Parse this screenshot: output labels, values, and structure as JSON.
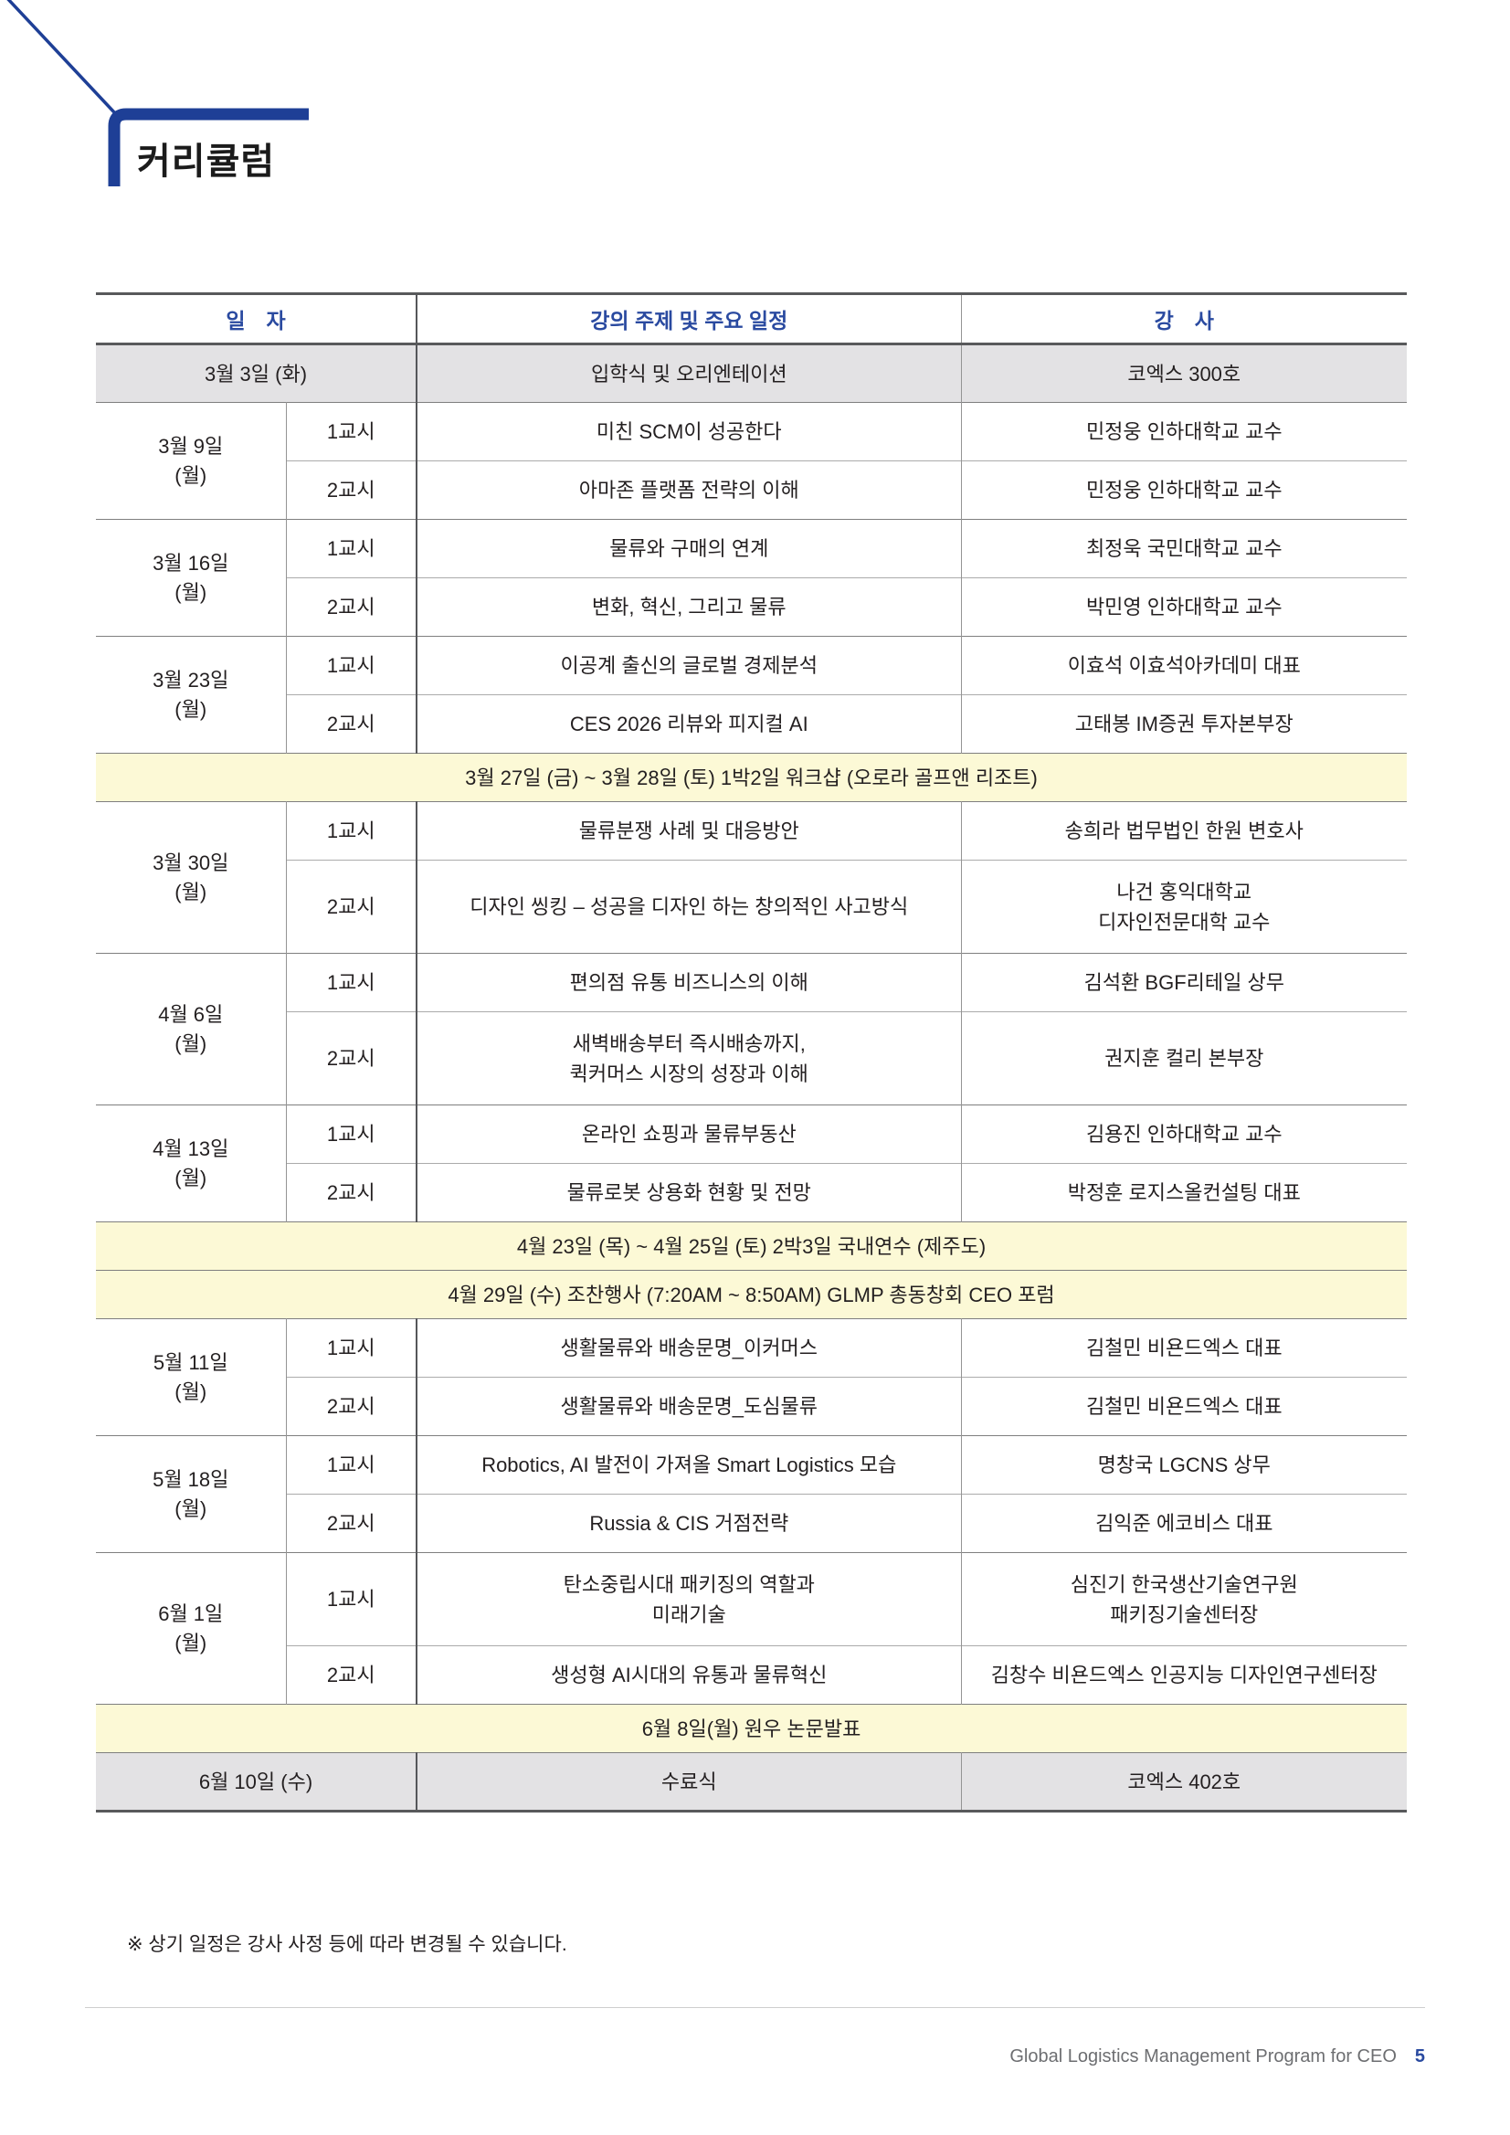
{
  "page": {
    "title": "커리큘럼",
    "note": "※ 상기 일정은 강사 사정 등에 따라 변경될 수 있습니다.",
    "footer": {
      "program": "Global Logistics Management Program for CEO",
      "page_number": "5"
    }
  },
  "colors": {
    "accent_blue": "#2a4aa0",
    "bracket_navy": "#1e3f96",
    "row_gray": "#e3e2e4",
    "band_yellow": "#fcf9d6",
    "border_dark": "#58595b"
  },
  "table": {
    "header": {
      "date": "일　자",
      "topic": "강의 주제 및 주요 일정",
      "lecturer": "강　사"
    },
    "rows": [
      {
        "type": "single",
        "date": "3월 3일  (화)",
        "topic": "입학식 및 오리엔테이션",
        "lecturer": "코엑스 300호"
      },
      {
        "type": "group",
        "date": "3월 9일\n(월)",
        "sessions": [
          {
            "period": "1교시",
            "topic": "미친 SCM이 성공한다",
            "lecturer": "민정웅 인하대학교 교수"
          },
          {
            "period": "2교시",
            "topic": "아마존 플랫폼 전략의 이해",
            "lecturer": "민정웅 인하대학교 교수"
          }
        ]
      },
      {
        "type": "group",
        "date": "3월 16일\n(월)",
        "sessions": [
          {
            "period": "1교시",
            "topic": "물류와 구매의 연계",
            "lecturer": "최정욱 국민대학교 교수"
          },
          {
            "period": "2교시",
            "topic": "변화, 혁신, 그리고 물류",
            "lecturer": "박민영 인하대학교 교수"
          }
        ]
      },
      {
        "type": "group",
        "date": "3월 23일\n(월)",
        "sessions": [
          {
            "period": "1교시",
            "topic": "이공계 출신의 글로벌 경제분석",
            "lecturer": "이효석 이효석아카데미 대표"
          },
          {
            "period": "2교시",
            "topic": "CES 2026 리뷰와 피지컬 AI",
            "lecturer": "고태봉 IM증권 투자본부장"
          }
        ]
      },
      {
        "type": "band",
        "text": "3월 27일 (금) ~ 3월 28일 (토) 1박2일 워크샵 (오로라 골프앤 리조트)"
      },
      {
        "type": "group",
        "date": "3월 30일\n(월)",
        "sessions": [
          {
            "period": "1교시",
            "topic": "물류분쟁 사례 및 대응방안",
            "lecturer": "송희라 법무법인 한원 변호사"
          },
          {
            "period": "2교시",
            "topic": "디자인 씽킹 – 성공을 디자인 하는 창의적인 사고방식",
            "lecturer": "나건 홍익대학교\n디자인전문대학 교수"
          }
        ]
      },
      {
        "type": "group",
        "date": "4월 6일\n(월)",
        "sessions": [
          {
            "period": "1교시",
            "topic": "편의점 유통 비즈니스의 이해",
            "lecturer": "김석환 BGF리테일 상무"
          },
          {
            "period": "2교시",
            "topic": "새벽배송부터 즉시배송까지,\n퀵커머스 시장의 성장과 이해",
            "lecturer": "권지훈 컬리 본부장"
          }
        ]
      },
      {
        "type": "group",
        "date": "4월 13일\n(월)",
        "sessions": [
          {
            "period": "1교시",
            "topic": "온라인 쇼핑과 물류부동산",
            "lecturer": "김용진 인하대학교 교수"
          },
          {
            "period": "2교시",
            "topic": "물류로봇 상용화 현황 및 전망",
            "lecturer": "박정훈 로지스올컨설팅 대표"
          }
        ]
      },
      {
        "type": "band",
        "text": "4월 23일 (목) ~ 4월 25일 (토) 2박3일 국내연수 (제주도)"
      },
      {
        "type": "band",
        "text": "4월 29일 (수) 조찬행사 (7:20AM ~ 8:50AM) GLMP 총동창회 CEO 포럼"
      },
      {
        "type": "group",
        "date": "5월 11일\n(월)",
        "sessions": [
          {
            "period": "1교시",
            "topic": "생활물류와 배송문명_이커머스",
            "lecturer": "김철민 비욘드엑스 대표"
          },
          {
            "period": "2교시",
            "topic": "생활물류와 배송문명_도심물류",
            "lecturer": "김철민 비욘드엑스 대표"
          }
        ]
      },
      {
        "type": "group",
        "date": "5월 18일\n(월)",
        "sessions": [
          {
            "period": "1교시",
            "topic": "Robotics, AI 발전이 가져올 Smart Logistics 모습",
            "lecturer": "명창국 LGCNS 상무"
          },
          {
            "period": "2교시",
            "topic": "Russia & CIS 거점전략",
            "lecturer": "김익준 에코비스 대표"
          }
        ]
      },
      {
        "type": "group",
        "date": "6월 1일\n(월)",
        "sessions": [
          {
            "period": "1교시",
            "topic": "탄소중립시대 패키징의 역할과\n미래기술",
            "lecturer": "심진기 한국생산기술연구원\n패키징기술센터장"
          },
          {
            "period": "2교시",
            "topic": "생성형 AI시대의 유통과 물류혁신",
            "lecturer": "김창수 비욘드엑스 인공지능 디자인연구센터장"
          }
        ]
      },
      {
        "type": "band",
        "text": "6월 8일(월) 원우 논문발표"
      },
      {
        "type": "single",
        "date": "6월 10일 (수)",
        "topic": "수료식",
        "lecturer": "코엑스 402호"
      }
    ]
  }
}
